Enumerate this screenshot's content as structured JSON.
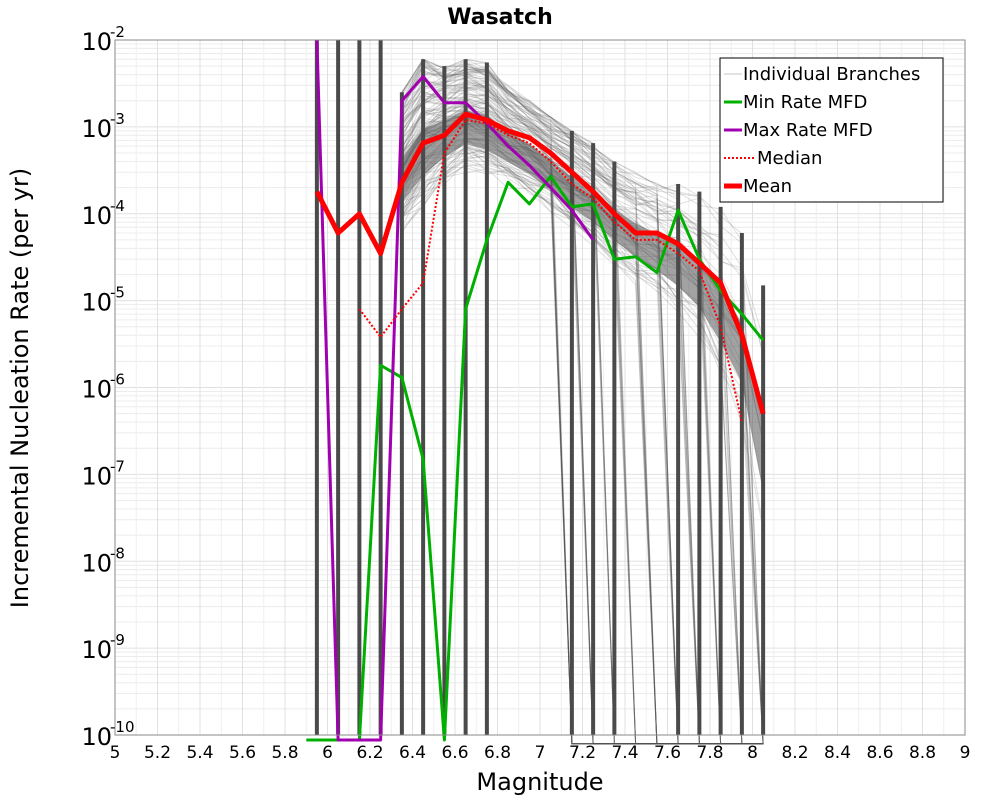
{
  "chart_data": {
    "type": "line",
    "title": "Wasatch",
    "xlabel": "Magnitude",
    "ylabel": "Incremental Nucleation Rate (per yr)",
    "xlim": [
      5,
      9
    ],
    "ylim_log10": [
      -10,
      -2
    ],
    "yscale": "log",
    "grid": true,
    "legend_position": "top-right",
    "xticks": [
      "5",
      "5.2",
      "5.4",
      "5.6",
      "5.8",
      "6",
      "6.2",
      "6.4",
      "6.6",
      "6.8",
      "7",
      "7.2",
      "7.4",
      "7.6",
      "7.8",
      "8",
      "8.2",
      "8.4",
      "8.6",
      "8.8",
      "9"
    ],
    "yticks": [
      {
        "base": "10",
        "exp": "-2"
      },
      {
        "base": "10",
        "exp": "-3"
      },
      {
        "base": "10",
        "exp": "-4"
      },
      {
        "base": "10",
        "exp": "-5"
      },
      {
        "base": "10",
        "exp": "-6"
      },
      {
        "base": "10",
        "exp": "-7"
      },
      {
        "base": "10",
        "exp": "-8"
      },
      {
        "base": "10",
        "exp": "-9"
      },
      {
        "base": "10",
        "exp": "-10"
      }
    ],
    "series": [
      {
        "name": "Min Rate MFD",
        "color": "#00b000",
        "style": "solid",
        "x": [
          5.9,
          5.95,
          6.05,
          6.15,
          6.25,
          6.35,
          6.45,
          6.55,
          6.65,
          6.75,
          6.85,
          6.95,
          7.05,
          7.15,
          7.25,
          7.35,
          7.45,
          7.55,
          7.65,
          7.75,
          7.85,
          7.95,
          8.05
        ],
        "y": [
          null,
          null,
          null,
          null,
          1.8e-06,
          1.3e-06,
          1.5e-07,
          null,
          8e-06,
          5e-05,
          0.00023,
          0.00013,
          0.00027,
          0.00012,
          0.00013,
          3e-05,
          3.2e-05,
          2.1e-05,
          0.00011,
          3e-05,
          1.3e-05,
          7e-06,
          3.5e-06
        ]
      },
      {
        "name": "Max Rate MFD",
        "color": "#a000b0",
        "style": "solid",
        "x": [
          5.95,
          6.05,
          6.15,
          6.25,
          6.35,
          6.45,
          6.55,
          6.65,
          6.75,
          6.85,
          6.95,
          7.05,
          7.15,
          7.25
        ],
        "y": [
          0.01,
          null,
          null,
          null,
          0.002,
          0.0038,
          0.0019,
          0.0019,
          0.0011,
          0.0006,
          0.00036,
          0.0002,
          0.00011,
          5e-05
        ]
      },
      {
        "name": "Median",
        "color": "#ff0000",
        "style": "dotted",
        "x": [
          6.15,
          6.25,
          6.35,
          6.45,
          6.55,
          6.65,
          6.75,
          6.85,
          6.95,
          7.05,
          7.15,
          7.25,
          7.35,
          7.45,
          7.55,
          7.65,
          7.75,
          7.85,
          7.95
        ],
        "y": [
          8e-06,
          3.8e-06,
          8e-06,
          1.6e-05,
          0.0005,
          0.0012,
          0.0011,
          0.0008,
          0.00065,
          0.0004,
          0.00022,
          0.00015,
          8e-05,
          5e-05,
          5e-05,
          3.5e-05,
          2.2e-05,
          5e-06,
          4e-07
        ]
      },
      {
        "name": "Mean",
        "color": "#ff0000",
        "style": "solid",
        "x": [
          5.95,
          6.05,
          6.15,
          6.25,
          6.35,
          6.45,
          6.55,
          6.65,
          6.75,
          6.85,
          6.95,
          7.05,
          7.15,
          7.25,
          7.35,
          7.45,
          7.55,
          7.65,
          7.75,
          7.85,
          7.95,
          8.05
        ],
        "y": [
          0.00018,
          6e-05,
          0.0001,
          3.5e-05,
          0.00023,
          0.00065,
          0.0008,
          0.0014,
          0.0012,
          0.0009,
          0.00075,
          0.0005,
          0.0003,
          0.00018,
          0.0001,
          6e-05,
          6e-05,
          4.5e-05,
          2.7e-05,
          1.6e-05,
          4e-06,
          5e-07
        ]
      }
    ],
    "individual_branches": {
      "name": "Individual Branches",
      "color": "#555555",
      "envelope_x": [
        6.35,
        6.45,
        6.55,
        6.65,
        6.75,
        6.85,
        6.95,
        7.05,
        7.15,
        7.25,
        7.35,
        7.45,
        7.55,
        7.65,
        7.75,
        7.85,
        7.95,
        8.05
      ],
      "envelope_upper": [
        0.0025,
        0.006,
        0.005,
        0.006,
        0.0055,
        0.003,
        0.002,
        0.0013,
        0.0009,
        0.00065,
        0.0004,
        0.0003,
        0.00025,
        0.00022,
        0.00018,
        0.00012,
        6e-05,
        1.5e-05
      ],
      "envelope_lower": [
        5e-05,
        0.0001,
        0.0002,
        0.0003,
        0.00025,
        0.0002,
        0.00015,
        0.0001,
        6e-05,
        4e-05,
        2.5e-05,
        1.5e-05,
        1e-05,
        6e-06,
        3e-06,
        1e-06,
        3e-07,
        1e-08
      ],
      "spike_x": [
        5.95,
        6.05,
        6.15,
        6.25,
        6.35,
        6.45,
        6.55,
        6.65,
        6.75,
        7.15,
        7.25,
        7.35,
        7.65,
        7.75,
        7.85,
        7.95,
        8.05
      ]
    },
    "legend": [
      "Individual Branches",
      "Min Rate MFD",
      "Max Rate MFD",
      "Median",
      "Mean"
    ]
  }
}
